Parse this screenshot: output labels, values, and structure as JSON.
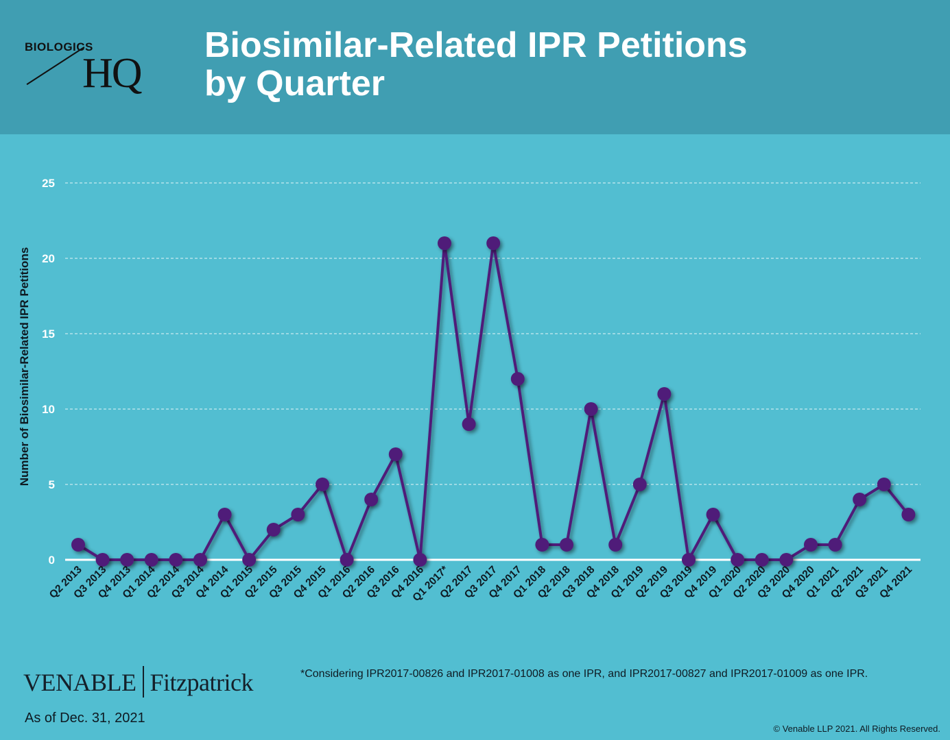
{
  "header": {
    "logo_top": "BIOLOGICS",
    "logo_main": "HQ",
    "title_line1": "Biosimilar-Related IPR Petitions",
    "title_line2": "by Quarter"
  },
  "colors": {
    "header_bg": "#409eb2",
    "chart_bg": "#52bed1",
    "series": "#4f1d79",
    "gridline": "#ffffff"
  },
  "chart_data": {
    "type": "line",
    "title": "Biosimilar-Related IPR Petitions by Quarter",
    "xlabel": "",
    "ylabel": "Number of Biosimilar-Related IPR Petitions",
    "ylim": [
      0,
      25
    ],
    "yticks": [
      0,
      5,
      10,
      15,
      20,
      25
    ],
    "grid": true,
    "categories": [
      "Q2 2013",
      "Q3 2013",
      "Q4 2013",
      "Q1 2014",
      "Q2 2014",
      "Q3 2014",
      "Q4 2014",
      "Q1 2015",
      "Q2 2015",
      "Q3 2015",
      "Q4 2015",
      "Q1 2016",
      "Q2 2016",
      "Q3 2016",
      "Q4 2016",
      "Q1 2017*",
      "Q2 2017",
      "Q3 2017",
      "Q4 2017",
      "Q1 2018",
      "Q2 2018",
      "Q3 2018",
      "Q4 2018",
      "Q1 2019",
      "Q2 2019",
      "Q3 2019",
      "Q4 2019",
      "Q1 2020",
      "Q2 2020",
      "Q3 2020",
      "Q4 2020",
      "Q1 2021",
      "Q2 2021",
      "Q3 2021",
      "Q4 2021"
    ],
    "series": [
      {
        "values": [
          1,
          0,
          0,
          0,
          0,
          0,
          3,
          0,
          2,
          3,
          5,
          0,
          4,
          7,
          0,
          21,
          9,
          21,
          12,
          1,
          1,
          10,
          1,
          5,
          11,
          0,
          3,
          0,
          0,
          0,
          1,
          1,
          4,
          5,
          3
        ]
      }
    ]
  },
  "footer": {
    "note": "*Considering IPR2017-00826 and IPR2017-01008 as one IPR, and IPR2017-00827 and IPR2017-01009 as one IPR.",
    "firm_left": "VENABLE",
    "firm_right": "Fitzpatrick",
    "as_of": "As of Dec. 31, 2021",
    "copyright": "© Venable LLP 2021. All Rights Reserved."
  }
}
